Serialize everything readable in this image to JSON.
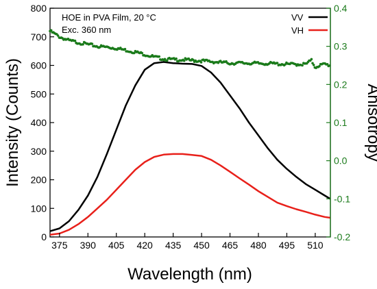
{
  "chart_data": {
    "type": "line",
    "annotations": [
      "HOE in PVA Film, 20 °C",
      "Exc. 360 nm"
    ],
    "xlabel": "Wavelength (nm)",
    "ylabel": "Intensity (Counts)",
    "y2label": "Anisotropy",
    "xlim": [
      370,
      518
    ],
    "ylim": [
      0,
      800
    ],
    "y2lim": [
      -0.2,
      0.4
    ],
    "xticks": [
      375,
      390,
      405,
      420,
      435,
      450,
      465,
      480,
      495,
      510
    ],
    "xtick_labels": [
      "375",
      "390",
      "405",
      "420",
      "435",
      "450",
      "465",
      "480",
      "495",
      "510"
    ],
    "yticks": [
      0,
      100,
      200,
      300,
      400,
      500,
      600,
      700,
      800
    ],
    "ytick_labels": [
      "0",
      "100",
      "200",
      "300",
      "400",
      "500",
      "600",
      "700",
      "800"
    ],
    "y2ticks": [
      -0.2,
      -0.1,
      0.0,
      0.1,
      0.2,
      0.3,
      0.4
    ],
    "y2tick_labels": [
      "-0.2",
      "-0.1",
      "0.0",
      "0.1",
      "0.2",
      "0.3",
      "0.4"
    ],
    "legend_position": "top-right",
    "grid": false,
    "colors": {
      "VV": "#000000",
      "VH": "#e8201a",
      "anisotropy": "#1a7a1a",
      "right_axis": "#1a7a1a"
    },
    "series": [
      {
        "name": "VV",
        "axis": "left",
        "x": [
          370,
          375,
          380,
          385,
          390,
          395,
          400,
          405,
          410,
          415,
          420,
          425,
          430,
          435,
          440,
          445,
          450,
          455,
          460,
          465,
          470,
          475,
          480,
          485,
          490,
          495,
          500,
          505,
          510,
          515,
          518
        ],
        "values": [
          20,
          30,
          55,
          95,
          145,
          210,
          290,
          375,
          460,
          530,
          585,
          608,
          612,
          608,
          606,
          605,
          598,
          575,
          540,
          495,
          450,
          400,
          355,
          310,
          270,
          238,
          210,
          185,
          165,
          145,
          133
        ]
      },
      {
        "name": "VH",
        "axis": "left",
        "x": [
          370,
          375,
          380,
          385,
          390,
          395,
          400,
          405,
          410,
          415,
          420,
          425,
          430,
          435,
          440,
          445,
          450,
          455,
          460,
          465,
          470,
          475,
          480,
          485,
          490,
          495,
          500,
          505,
          510,
          515,
          518
        ],
        "values": [
          8,
          12,
          25,
          45,
          70,
          100,
          130,
          165,
          200,
          235,
          262,
          280,
          288,
          290,
          290,
          287,
          283,
          270,
          250,
          228,
          205,
          183,
          160,
          140,
          120,
          108,
          97,
          88,
          78,
          70,
          67
        ]
      },
      {
        "name": "",
        "axis": "right",
        "x": [
          370,
          375,
          380,
          385,
          390,
          395,
          400,
          405,
          410,
          415,
          420,
          425,
          430,
          435,
          440,
          445,
          450,
          455,
          460,
          465,
          470,
          475,
          480,
          485,
          490,
          495,
          500,
          505,
          508,
          510,
          512,
          515,
          518
        ],
        "values": [
          0.34,
          0.325,
          0.315,
          0.31,
          0.305,
          0.3,
          0.298,
          0.295,
          0.29,
          0.285,
          0.279,
          0.272,
          0.267,
          0.265,
          0.265,
          0.263,
          0.262,
          0.26,
          0.258,
          0.256,
          0.256,
          0.256,
          0.255,
          0.255,
          0.254,
          0.253,
          0.253,
          0.253,
          0.263,
          0.245,
          0.25,
          0.253,
          0.25
        ]
      }
    ]
  }
}
